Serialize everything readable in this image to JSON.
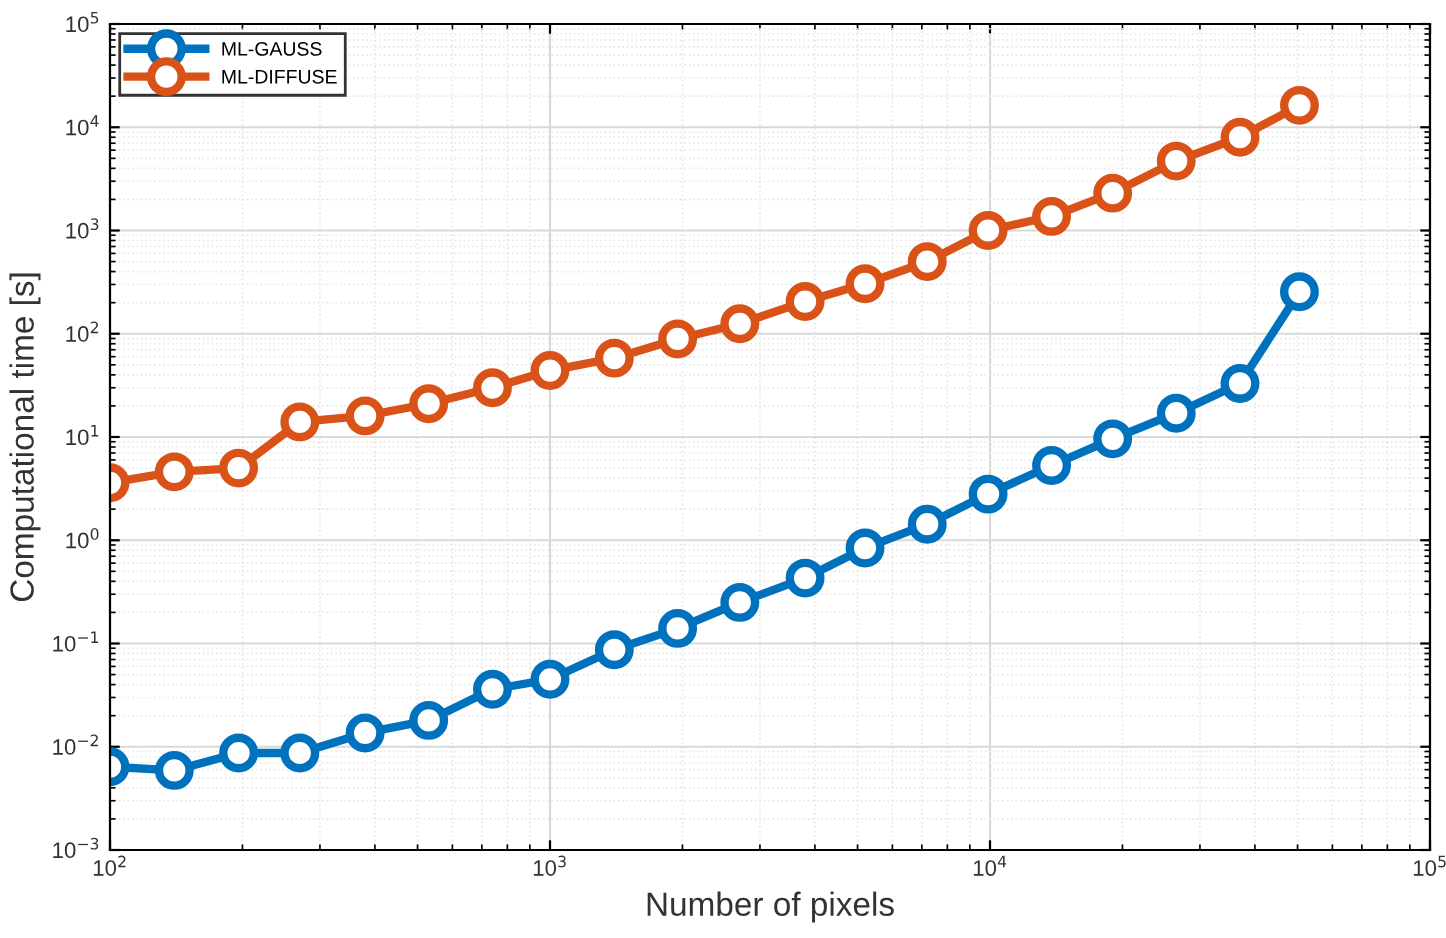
{
  "chart_data": {
    "type": "line",
    "xlabel": "Number of pixels",
    "ylabel": "Computational time [s]",
    "log": "xy",
    "grid": true,
    "legend": "top left",
    "marker": "circle",
    "line_style": "solid",
    "x": [
      100,
      140,
      196,
      270,
      380,
      530,
      740,
      1000,
      1400,
      1950,
      2700,
      3800,
      5200,
      7200,
      9900,
      13800,
      19000,
      26500,
      37000,
      50500
    ],
    "series": [
      {
        "name": "ML-GAUSS",
        "color": "#0072bd",
        "values": [
          0.0064,
          0.0059,
          0.0087,
          0.0087,
          0.0136,
          0.018,
          0.036,
          0.045,
          0.087,
          0.14,
          0.25,
          0.43,
          0.84,
          1.43,
          2.8,
          5.3,
          9.6,
          17,
          33,
          255
        ]
      },
      {
        "name": "ML-DIFFUSE",
        "color": "#d95319",
        "values": [
          3.6,
          4.6,
          5,
          14,
          16,
          21,
          30,
          44,
          58,
          89,
          125,
          205,
          305,
          500,
          1000,
          1370,
          2300,
          4700,
          8000,
          16300
        ]
      }
    ],
    "xlim": [
      100,
      100000
    ],
    "ylim": [
      0.001,
      100000
    ],
    "xticks": [
      {
        "value": 100,
        "label": "10$^{2}$"
      },
      {
        "value": 1000,
        "label": "10$^{3}$"
      },
      {
        "value": 10000,
        "label": "10$^{4}$"
      },
      {
        "value": 100000,
        "label": "10$^{5}$"
      }
    ],
    "yticks": [
      {
        "value": 0.001,
        "label": "10$^{−3}$"
      },
      {
        "value": 0.01,
        "label": "10$^{−2}$"
      },
      {
        "value": 0.1,
        "label": "10$^{−1}$"
      },
      {
        "value": 1,
        "label": "10$^{0}$"
      },
      {
        "value": 10,
        "label": "10$^{1}$"
      },
      {
        "value": 100,
        "label": "10$^{2}$"
      },
      {
        "value": 1000,
        "label": "10$^{3}$"
      },
      {
        "value": 10000,
        "label": "10$^{4}$"
      },
      {
        "value": 100000,
        "label": "10$^{5}$"
      }
    ]
  }
}
